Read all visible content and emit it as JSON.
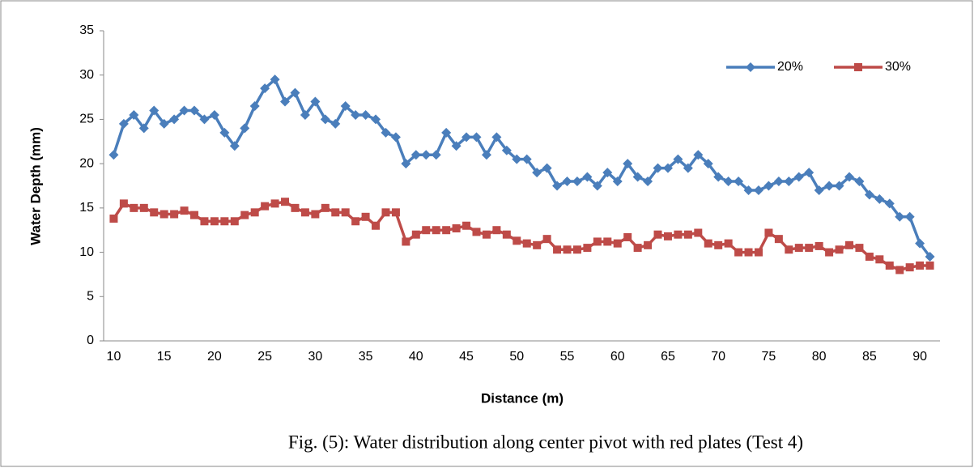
{
  "chart_data": {
    "type": "line",
    "caption": "Fig. (5): Water distribution along center pivot with red plates (Test 4)",
    "x_label": "Distance (m)",
    "y_label": "Water Depth (mm)",
    "x": [
      10,
      11,
      12,
      13,
      14,
      15,
      16,
      17,
      18,
      19,
      20,
      21,
      22,
      23,
      24,
      25,
      26,
      27,
      28,
      29,
      30,
      31,
      32,
      33,
      34,
      35,
      36,
      37,
      38,
      39,
      40,
      41,
      42,
      43,
      44,
      45,
      46,
      47,
      48,
      49,
      50,
      51,
      52,
      53,
      54,
      55,
      56,
      57,
      58,
      59,
      60,
      61,
      62,
      63,
      64,
      65,
      66,
      67,
      68,
      69,
      70,
      71,
      72,
      73,
      74,
      75,
      76,
      77,
      78,
      79,
      80,
      81,
      82,
      83,
      84,
      85,
      86,
      87,
      88,
      89,
      90,
      91
    ],
    "series": [
      {
        "name": "20%",
        "color": "#4a7ebb",
        "marker": "diamond",
        "values": [
          21,
          24.5,
          25.5,
          24,
          26,
          24.5,
          25,
          26,
          26,
          25,
          25.5,
          23.5,
          22,
          24,
          26.5,
          28.5,
          29.5,
          27,
          28,
          25.5,
          27,
          25,
          24.5,
          26.5,
          25.5,
          25.5,
          25,
          23.5,
          23,
          20,
          21,
          21,
          21,
          23.5,
          22,
          23,
          23,
          21,
          23,
          21.5,
          20.5,
          20.5,
          19,
          19.5,
          17.5,
          18,
          18,
          18.5,
          17.5,
          19,
          18,
          20,
          18.5,
          18,
          19.5,
          19.5,
          20.5,
          19.5,
          21,
          20,
          18.5,
          18,
          18,
          17,
          17,
          17.5,
          18,
          18,
          18.5,
          19,
          17,
          17.5,
          17.5,
          18.5,
          18,
          16.5,
          16,
          15.5,
          14,
          14,
          11,
          9.5
        ]
      },
      {
        "name": "30%",
        "color": "#be4b48",
        "marker": "square",
        "values": [
          13.8,
          15.5,
          15,
          15,
          14.5,
          14.3,
          14.3,
          14.7,
          14.2,
          13.5,
          13.5,
          13.5,
          13.5,
          14.2,
          14.5,
          15.2,
          15.5,
          15.7,
          15,
          14.5,
          14.3,
          15,
          14.5,
          14.5,
          13.5,
          14,
          13,
          14.5,
          14.5,
          11.2,
          12,
          12.5,
          12.5,
          12.5,
          12.7,
          13,
          12.3,
          12,
          12.5,
          12,
          11.3,
          11,
          10.8,
          11.5,
          10.3,
          10.3,
          10.3,
          10.5,
          11.2,
          11.2,
          11,
          11.7,
          10.5,
          10.8,
          12,
          11.8,
          12,
          12,
          12.2,
          11,
          10.8,
          11,
          10,
          10,
          10,
          12.2,
          11.5,
          10.3,
          10.5,
          10.5,
          10.7,
          10,
          10.3,
          10.8,
          10.5,
          9.5,
          9.2,
          8.5,
          8,
          8.3,
          8.5,
          8.5
        ]
      }
    ],
    "xlim": [
      9,
      92
    ],
    "xticks": [
      10,
      15,
      20,
      25,
      30,
      35,
      40,
      45,
      50,
      55,
      60,
      65,
      70,
      75,
      80,
      85,
      90
    ],
    "ylim": [
      0,
      35
    ],
    "yticks": [
      0,
      5,
      10,
      15,
      20,
      25,
      30,
      35
    ],
    "grid": false,
    "legend": "top-right"
  }
}
